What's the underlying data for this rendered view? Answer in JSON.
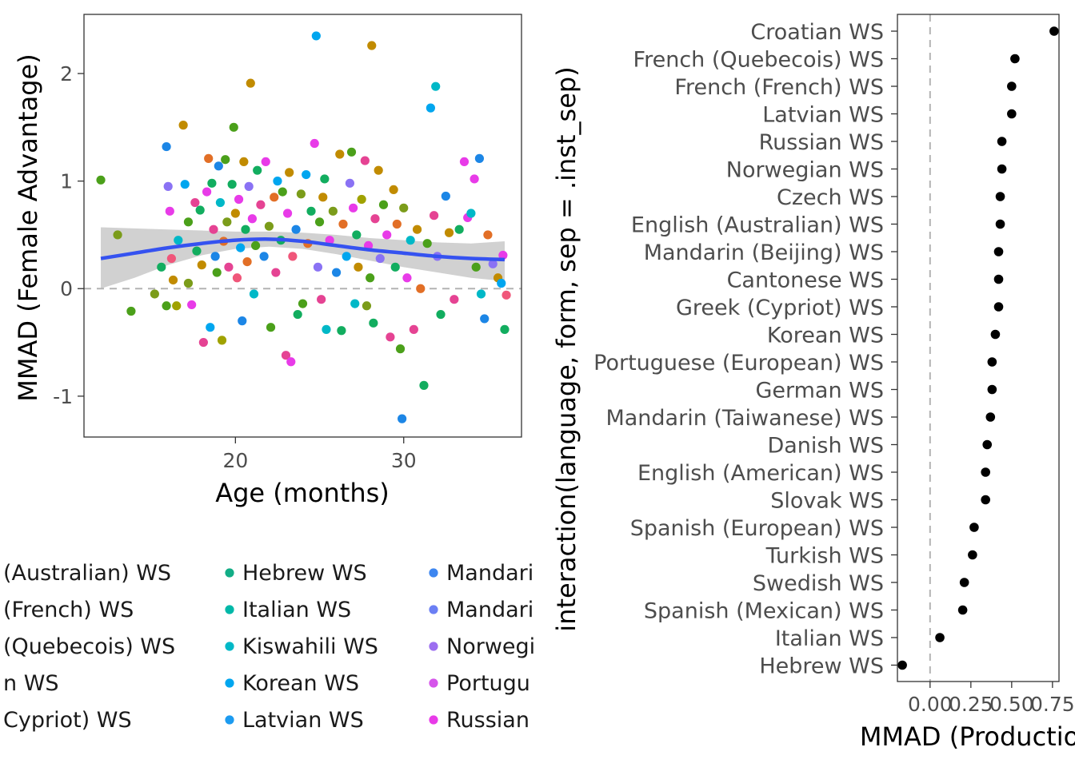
{
  "chart_data": [
    {
      "type": "scatter",
      "xlabel": "Age (months)",
      "ylabel": "MMAD (Female Advantage)",
      "xlim": [
        11,
        37
      ],
      "ylim": [
        -1.38,
        2.55
      ],
      "xticks": [
        20,
        30
      ],
      "xtick_labels": [
        "20",
        "30"
      ],
      "yticks": [
        -1,
        0,
        1,
        2
      ],
      "ytick_labels": [
        "-1",
        "0",
        "1",
        "2"
      ],
      "reference_line_y": 0,
      "trend": {
        "x": [
          12,
          14,
          16,
          18,
          20,
          22,
          24,
          26,
          28,
          30,
          32,
          34,
          36
        ],
        "y": [
          0.28,
          0.33,
          0.38,
          0.42,
          0.45,
          0.46,
          0.44,
          0.4,
          0.36,
          0.33,
          0.3,
          0.28,
          0.27
        ],
        "ci_upper": [
          0.57,
          0.56,
          0.55,
          0.54,
          0.53,
          0.53,
          0.52,
          0.5,
          0.47,
          0.45,
          0.43,
          0.42,
          0.44
        ],
        "ci_lower": [
          0.0,
          0.1,
          0.22,
          0.31,
          0.37,
          0.39,
          0.37,
          0.32,
          0.26,
          0.2,
          0.15,
          0.1,
          0.07
        ],
        "color": "#3552f0"
      },
      "points": [
        {
          "x": 12.0,
          "y": 1.01,
          "c": "#4ba01a"
        },
        {
          "x": 13.0,
          "y": 0.5,
          "c": "#7b9c1a"
        },
        {
          "x": 13.8,
          "y": -0.21,
          "c": "#4ba01a"
        },
        {
          "x": 15.2,
          "y": -0.05,
          "c": "#7b9c1a"
        },
        {
          "x": 15.6,
          "y": 0.2,
          "c": "#12ad5f"
        },
        {
          "x": 15.9,
          "y": -0.16,
          "c": "#4ba01a"
        },
        {
          "x": 15.9,
          "y": 1.32,
          "c": "#1c86e6"
        },
        {
          "x": 16.0,
          "y": 0.95,
          "c": "#8a72f4"
        },
        {
          "x": 16.1,
          "y": 0.72,
          "c": "#e83be8"
        },
        {
          "x": 16.2,
          "y": 0.28,
          "c": "#f0567a"
        },
        {
          "x": 16.3,
          "y": 0.08,
          "c": "#c18b00"
        },
        {
          "x": 16.5,
          "y": -0.16,
          "c": "#a0a200"
        },
        {
          "x": 16.6,
          "y": 0.45,
          "c": "#00b8c7"
        },
        {
          "x": 16.9,
          "y": 1.52,
          "c": "#c18b00"
        },
        {
          "x": 17.0,
          "y": 0.97,
          "c": "#00a6ef"
        },
        {
          "x": 17.2,
          "y": 0.62,
          "c": "#4ba01a"
        },
        {
          "x": 17.2,
          "y": 0.05,
          "c": "#7b9c1a"
        },
        {
          "x": 17.4,
          "y": -0.15,
          "c": "#e83be8"
        },
        {
          "x": 17.6,
          "y": 0.8,
          "c": "#e54393"
        },
        {
          "x": 17.7,
          "y": 0.35,
          "c": "#12ad5f"
        },
        {
          "x": 17.9,
          "y": 0.73,
          "c": "#12ad5f"
        },
        {
          "x": 18.0,
          "y": 0.22,
          "c": "#c18b00"
        },
        {
          "x": 18.1,
          "y": -0.5,
          "c": "#e54393"
        },
        {
          "x": 18.3,
          "y": 0.9,
          "c": "#e83be8"
        },
        {
          "x": 18.4,
          "y": 1.21,
          "c": "#e26f26"
        },
        {
          "x": 18.5,
          "y": -0.36,
          "c": "#00a6ef"
        },
        {
          "x": 18.6,
          "y": 0.98,
          "c": "#12ad5f"
        },
        {
          "x": 18.7,
          "y": 0.55,
          "c": "#e54393"
        },
        {
          "x": 18.8,
          "y": 0.3,
          "c": "#1c86e6"
        },
        {
          "x": 18.9,
          "y": 0.15,
          "c": "#4ba01a"
        },
        {
          "x": 19.0,
          "y": 1.14,
          "c": "#1c86e6"
        },
        {
          "x": 19.1,
          "y": 0.8,
          "c": "#00b8c7"
        },
        {
          "x": 19.2,
          "y": -0.48,
          "c": "#a0a200"
        },
        {
          "x": 19.3,
          "y": 0.44,
          "c": "#e26f26"
        },
        {
          "x": 19.4,
          "y": 1.2,
          "c": "#4ba01a"
        },
        {
          "x": 19.5,
          "y": 0.62,
          "c": "#7b9c1a"
        },
        {
          "x": 19.6,
          "y": 0.2,
          "c": "#e54393"
        },
        {
          "x": 19.8,
          "y": 0.97,
          "c": "#12ad5f"
        },
        {
          "x": 19.9,
          "y": 1.5,
          "c": "#4ba01a"
        },
        {
          "x": 20.0,
          "y": 0.7,
          "c": "#c18b00"
        },
        {
          "x": 20.1,
          "y": 0.1,
          "c": "#f0567a"
        },
        {
          "x": 20.2,
          "y": 0.83,
          "c": "#e83be8"
        },
        {
          "x": 20.3,
          "y": 0.38,
          "c": "#00a6ef"
        },
        {
          "x": 20.4,
          "y": -0.3,
          "c": "#1c86e6"
        },
        {
          "x": 20.5,
          "y": 1.18,
          "c": "#c18b00"
        },
        {
          "x": 20.6,
          "y": 0.55,
          "c": "#12ad5f"
        },
        {
          "x": 20.7,
          "y": 0.25,
          "c": "#e26f26"
        },
        {
          "x": 20.8,
          "y": 0.95,
          "c": "#8a72f4"
        },
        {
          "x": 20.9,
          "y": 1.91,
          "c": "#c18b00"
        },
        {
          "x": 21.0,
          "y": 0.65,
          "c": "#e83be8"
        },
        {
          "x": 21.1,
          "y": -0.05,
          "c": "#00b8c7"
        },
        {
          "x": 21.2,
          "y": 0.4,
          "c": "#4ba01a"
        },
        {
          "x": 21.3,
          "y": 1.1,
          "c": "#12ad5f"
        },
        {
          "x": 21.5,
          "y": 0.78,
          "c": "#e54393"
        },
        {
          "x": 21.7,
          "y": 0.3,
          "c": "#1c86e6"
        },
        {
          "x": 21.8,
          "y": 1.18,
          "c": "#e83be8"
        },
        {
          "x": 22.0,
          "y": 0.58,
          "c": "#7b9c1a"
        },
        {
          "x": 22.1,
          "y": -0.36,
          "c": "#4ba01a"
        },
        {
          "x": 22.3,
          "y": 0.85,
          "c": "#e26f26"
        },
        {
          "x": 22.4,
          "y": 0.15,
          "c": "#e54393"
        },
        {
          "x": 22.5,
          "y": 1.0,
          "c": "#00a6ef"
        },
        {
          "x": 22.7,
          "y": 0.45,
          "c": "#12ad5f"
        },
        {
          "x": 22.8,
          "y": 0.9,
          "c": "#4ba01a"
        },
        {
          "x": 23.0,
          "y": -0.62,
          "c": "#e54393"
        },
        {
          "x": 23.1,
          "y": 0.7,
          "c": "#e83be8"
        },
        {
          "x": 23.2,
          "y": 1.08,
          "c": "#c18b00"
        },
        {
          "x": 23.3,
          "y": -0.68,
          "c": "#e83be8"
        },
        {
          "x": 23.4,
          "y": 0.3,
          "c": "#f0567a"
        },
        {
          "x": 23.6,
          "y": 0.55,
          "c": "#1c86e6"
        },
        {
          "x": 23.7,
          "y": -0.24,
          "c": "#12ad5f"
        },
        {
          "x": 23.9,
          "y": 0.88,
          "c": "#7b9c1a"
        },
        {
          "x": 24.0,
          "y": -0.14,
          "c": "#4ba01a"
        },
        {
          "x": 24.2,
          "y": 1.06,
          "c": "#00a6ef"
        },
        {
          "x": 24.3,
          "y": 0.42,
          "c": "#e26f26"
        },
        {
          "x": 24.5,
          "y": 0.72,
          "c": "#12ad5f"
        },
        {
          "x": 24.7,
          "y": 1.35,
          "c": "#e83be8"
        },
        {
          "x": 24.8,
          "y": 2.35,
          "c": "#00a6ef"
        },
        {
          "x": 24.9,
          "y": 0.2,
          "c": "#8a72f4"
        },
        {
          "x": 25.0,
          "y": 0.62,
          "c": "#4ba01a"
        },
        {
          "x": 25.1,
          "y": -0.1,
          "c": "#e54393"
        },
        {
          "x": 25.2,
          "y": 0.85,
          "c": "#c18b00"
        },
        {
          "x": 25.3,
          "y": 1.02,
          "c": "#12ad5f"
        },
        {
          "x": 25.4,
          "y": -0.38,
          "c": "#00b8c7"
        },
        {
          "x": 25.6,
          "y": 0.45,
          "c": "#e83be8"
        },
        {
          "x": 25.8,
          "y": 0.72,
          "c": "#7b9c1a"
        },
        {
          "x": 26.0,
          "y": 0.15,
          "c": "#1c86e6"
        },
        {
          "x": 26.2,
          "y": 1.25,
          "c": "#c18b00"
        },
        {
          "x": 26.3,
          "y": -0.39,
          "c": "#12ad5f"
        },
        {
          "x": 26.4,
          "y": 0.6,
          "c": "#e26f26"
        },
        {
          "x": 26.6,
          "y": 0.3,
          "c": "#00a6ef"
        },
        {
          "x": 26.8,
          "y": 0.98,
          "c": "#8a72f4"
        },
        {
          "x": 26.9,
          "y": 1.27,
          "c": "#4ba01a"
        },
        {
          "x": 27.0,
          "y": 0.75,
          "c": "#e83be8"
        },
        {
          "x": 27.1,
          "y": -0.14,
          "c": "#00b8c7"
        },
        {
          "x": 27.2,
          "y": 0.5,
          "c": "#12ad5f"
        },
        {
          "x": 27.3,
          "y": 0.2,
          "c": "#c18b00"
        },
        {
          "x": 27.5,
          "y": 0.83,
          "c": "#a0a200"
        },
        {
          "x": 27.7,
          "y": 1.19,
          "c": "#e54393"
        },
        {
          "x": 27.8,
          "y": -0.16,
          "c": "#7b9c1a"
        },
        {
          "x": 27.9,
          "y": 0.4,
          "c": "#e83be8"
        },
        {
          "x": 28.0,
          "y": 0.1,
          "c": "#4ba01a"
        },
        {
          "x": 28.1,
          "y": 2.26,
          "c": "#c18b00"
        },
        {
          "x": 28.2,
          "y": -0.32,
          "c": "#12ad5f"
        },
        {
          "x": 28.3,
          "y": 0.65,
          "c": "#e54393"
        },
        {
          "x": 28.5,
          "y": 1.1,
          "c": "#c18b00"
        },
        {
          "x": 28.6,
          "y": 0.28,
          "c": "#8a72f4"
        },
        {
          "x": 28.8,
          "y": 0.78,
          "c": "#4ba01a"
        },
        {
          "x": 29.0,
          "y": 0.5,
          "c": "#e83be8"
        },
        {
          "x": 29.2,
          "y": -0.45,
          "c": "#e54393"
        },
        {
          "x": 29.4,
          "y": 0.92,
          "c": "#c18b00"
        },
        {
          "x": 29.5,
          "y": 0.2,
          "c": "#12ad5f"
        },
        {
          "x": 29.6,
          "y": 0.6,
          "c": "#e26f26"
        },
        {
          "x": 29.8,
          "y": -0.56,
          "c": "#4ba01a"
        },
        {
          "x": 29.9,
          "y": -1.21,
          "c": "#1c86e6"
        },
        {
          "x": 30.0,
          "y": 0.75,
          "c": "#7b9c1a"
        },
        {
          "x": 30.2,
          "y": 0.1,
          "c": "#e83be8"
        },
        {
          "x": 30.4,
          "y": 0.45,
          "c": "#00b8c7"
        },
        {
          "x": 30.6,
          "y": -0.38,
          "c": "#e54393"
        },
        {
          "x": 30.8,
          "y": 0.55,
          "c": "#c18b00"
        },
        {
          "x": 31.0,
          "y": 0.0,
          "c": "#e26f26"
        },
        {
          "x": 31.2,
          "y": -0.9,
          "c": "#12ad5f"
        },
        {
          "x": 31.4,
          "y": 0.42,
          "c": "#4ba01a"
        },
        {
          "x": 31.6,
          "y": 1.68,
          "c": "#00a6ef"
        },
        {
          "x": 31.8,
          "y": 0.68,
          "c": "#e54393"
        },
        {
          "x": 31.9,
          "y": 1.88,
          "c": "#00b8c7"
        },
        {
          "x": 32.0,
          "y": 0.3,
          "c": "#8a72f4"
        },
        {
          "x": 32.2,
          "y": -0.24,
          "c": "#12ad5f"
        },
        {
          "x": 32.5,
          "y": 0.86,
          "c": "#1c86e6"
        },
        {
          "x": 32.7,
          "y": 0.52,
          "c": "#c18b00"
        },
        {
          "x": 33.0,
          "y": -0.1,
          "c": "#e54393"
        },
        {
          "x": 33.3,
          "y": 0.55,
          "c": "#12ad5f"
        },
        {
          "x": 33.6,
          "y": 1.18,
          "c": "#e83be8"
        },
        {
          "x": 33.8,
          "y": 0.66,
          "c": "#e83be8"
        },
        {
          "x": 34.0,
          "y": 0.7,
          "c": "#00b8c7"
        },
        {
          "x": 34.3,
          "y": 0.2,
          "c": "#4ba01a"
        },
        {
          "x": 34.5,
          "y": 1.21,
          "c": "#1c86e6"
        },
        {
          "x": 34.6,
          "y": -0.05,
          "c": "#00b8c7"
        },
        {
          "x": 34.8,
          "y": -0.28,
          "c": "#1c86e6"
        },
        {
          "x": 35.0,
          "y": 0.5,
          "c": "#e26f26"
        },
        {
          "x": 35.3,
          "y": 0.23,
          "c": "#8a72f4"
        },
        {
          "x": 35.6,
          "y": 0.1,
          "c": "#c18b00"
        },
        {
          "x": 35.8,
          "y": 0.05,
          "c": "#00a6ef"
        },
        {
          "x": 36.0,
          "y": -0.38,
          "c": "#12ad5f"
        },
        {
          "x": 36.1,
          "y": -0.06,
          "c": "#f0567a"
        },
        {
          "x": 34.2,
          "y": 1.02,
          "c": "#e83be8"
        },
        {
          "x": 35.9,
          "y": 0.31,
          "c": "#e83be8"
        }
      ],
      "legend": {
        "columns": [
          {
            "entries": [
              {
                "label": "(Australian) WS",
                "color": "#4ba01a"
              },
              {
                "label": "(French) WS",
                "color": "#12ad5f"
              },
              {
                "label": "(Quebecois) WS",
                "color": "#12ad5f"
              },
              {
                "label": "n WS",
                "color": "#12ad5f"
              },
              {
                "label": "Cypriot) WS",
                "color": "#12ad5f"
              }
            ]
          },
          {
            "entries": [
              {
                "label": "Hebrew WS",
                "color": "#12ad86"
              },
              {
                "label": "Italian WS",
                "color": "#00b8a8"
              },
              {
                "label": "Kiswahili WS",
                "color": "#00b8c7"
              },
              {
                "label": "Korean WS",
                "color": "#00a6ef"
              },
              {
                "label": "Latvian WS",
                "color": "#1c9bf0"
              }
            ]
          },
          {
            "entries": [
              {
                "label": "Mandari",
                "color": "#3d86f0"
              },
              {
                "label": "Mandari",
                "color": "#6b7ff4"
              },
              {
                "label": "Norwegi",
                "color": "#9c6ef0"
              },
              {
                "label": "Portugu",
                "color": "#d554ea"
              },
              {
                "label": "Russian",
                "color": "#e83be8"
              }
            ]
          }
        ]
      }
    },
    {
      "type": "dot",
      "xlabel": "MMAD (Productio",
      "ylabel": "interaction(language, form, sep = .inst_sep)",
      "xlim": [
        -0.2,
        0.79
      ],
      "xticks": [
        0.0,
        0.25,
        0.5,
        0.75
      ],
      "xtick_labels": [
        "0.00",
        "0.25",
        "0.50",
        "0.75"
      ],
      "reference_line_x": 0,
      "categories": [
        "Croatian WS",
        "French (Quebecois) WS",
        "French (French) WS",
        "Latvian WS",
        "Russian WS",
        "Norwegian WS",
        "Czech WS",
        "English (Australian) WS",
        "Mandarin (Beijing) WS",
        "Cantonese WS",
        "Greek (Cypriot) WS",
        "Korean WS",
        "Portuguese (European) WS",
        "German WS",
        "Mandarin (Taiwanese) WS",
        "Danish WS",
        "English (American) WS",
        "Slovak WS",
        "Spanish (European) WS",
        "Turkish WS",
        "Swedish WS",
        "Spanish (Mexican) WS",
        "Italian WS",
        "Hebrew WS"
      ],
      "values": [
        0.76,
        0.52,
        0.5,
        0.5,
        0.44,
        0.44,
        0.43,
        0.43,
        0.42,
        0.42,
        0.42,
        0.4,
        0.38,
        0.38,
        0.37,
        0.35,
        0.34,
        0.34,
        0.27,
        0.26,
        0.21,
        0.2,
        0.06,
        -0.17
      ]
    }
  ]
}
